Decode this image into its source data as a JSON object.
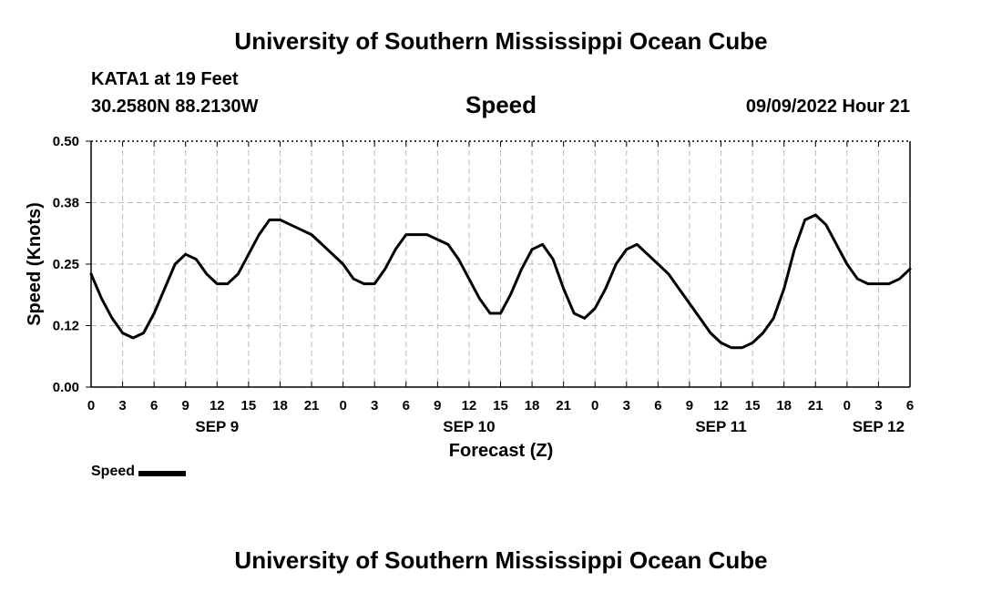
{
  "header": {
    "title": "University of Southern Mississippi Ocean Cube",
    "station": "KATA1 at 19 Feet",
    "coordinates": "30.2580N  88.2130W",
    "variable": "Speed",
    "issued": "09/09/2022 Hour 21"
  },
  "footer": {
    "title": "University of Southern Mississippi Ocean Cube"
  },
  "chart_data": {
    "type": "line",
    "xlabel": "Forecast (Z)",
    "ylabel": "Speed (Knots)",
    "ylim": [
      0,
      0.5
    ],
    "yticks": [
      "0.00",
      "0.12",
      "0.25",
      "0.38",
      "0.50"
    ],
    "xlim": [
      0,
      78
    ],
    "xticks": [
      "0",
      "3",
      "6",
      "9",
      "12",
      "15",
      "18",
      "21",
      "0",
      "3",
      "6",
      "9",
      "12",
      "15",
      "18",
      "21",
      "0",
      "3",
      "6",
      "9",
      "12",
      "15",
      "18",
      "21",
      "0",
      "3",
      "6"
    ],
    "date_labels": [
      {
        "label": "SEP 9",
        "hour": 12
      },
      {
        "label": "SEP 10",
        "hour": 36
      },
      {
        "label": "SEP 11",
        "hour": 60
      },
      {
        "label": "SEP 12",
        "hour": 75
      }
    ],
    "grid": true,
    "legend": "bottom-left",
    "series": [
      {
        "name": "Speed",
        "color": "#000000",
        "x": [
          0,
          1,
          2,
          3,
          4,
          5,
          6,
          7,
          8,
          9,
          10,
          11,
          12,
          13,
          14,
          15,
          16,
          17,
          18,
          19,
          20,
          21,
          22,
          23,
          24,
          25,
          26,
          27,
          28,
          29,
          30,
          31,
          32,
          33,
          34,
          35,
          36,
          37,
          38,
          39,
          40,
          41,
          42,
          43,
          44,
          45,
          46,
          47,
          48,
          49,
          50,
          51,
          52,
          53,
          54,
          55,
          56,
          57,
          58,
          59,
          60,
          61,
          62,
          63,
          64,
          65,
          66,
          67,
          68,
          69,
          70,
          71,
          72,
          73,
          74,
          75,
          76,
          77,
          78
        ],
        "values": [
          0.23,
          0.18,
          0.14,
          0.11,
          0.1,
          0.11,
          0.15,
          0.2,
          0.25,
          0.27,
          0.26,
          0.23,
          0.21,
          0.21,
          0.23,
          0.27,
          0.31,
          0.34,
          0.34,
          0.33,
          0.32,
          0.31,
          0.29,
          0.27,
          0.25,
          0.22,
          0.21,
          0.21,
          0.24,
          0.28,
          0.31,
          0.31,
          0.31,
          0.3,
          0.29,
          0.26,
          0.22,
          0.18,
          0.15,
          0.15,
          0.19,
          0.24,
          0.28,
          0.29,
          0.26,
          0.2,
          0.15,
          0.14,
          0.16,
          0.2,
          0.25,
          0.28,
          0.29,
          0.27,
          0.25,
          0.23,
          0.2,
          0.17,
          0.14,
          0.11,
          0.09,
          0.08,
          0.08,
          0.09,
          0.11,
          0.14,
          0.2,
          0.28,
          0.34,
          0.35,
          0.33,
          0.29,
          0.25,
          0.22,
          0.21,
          0.21,
          0.21,
          0.22,
          0.24
        ]
      }
    ]
  },
  "colors": {
    "line": "#000000",
    "grid": "#bbbbbb",
    "axis": "#000000"
  }
}
